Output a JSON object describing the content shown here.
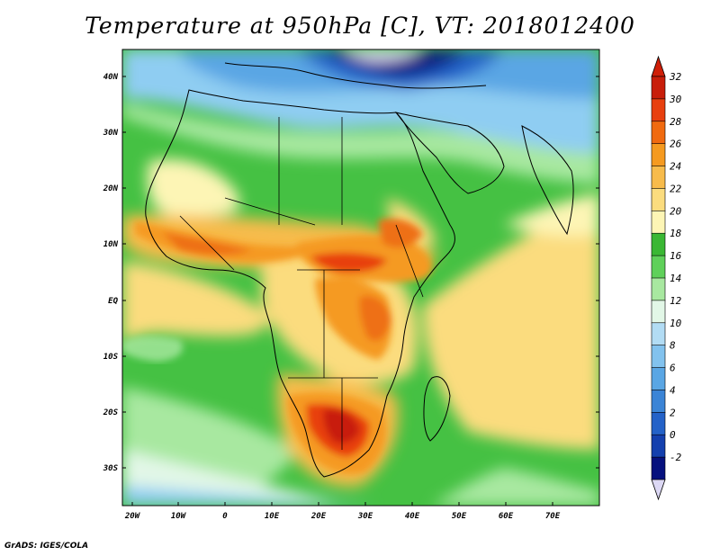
{
  "title": "Temperature at 950hPa [C], VT: 2018012400",
  "credit": "GrADS: IGES/COLA",
  "lat_labels": [
    "40N",
    "30N",
    "20N",
    "10N",
    "EQ",
    "10S",
    "20S",
    "30S"
  ],
  "lon_labels": [
    "20W",
    "10W",
    "0",
    "10E",
    "20E",
    "30E",
    "40E",
    "50E",
    "60E",
    "70E"
  ],
  "colorbar": {
    "labels": [
      "32",
      "30",
      "28",
      "26",
      "24",
      "22",
      "20",
      "18",
      "16",
      "14",
      "12",
      "10",
      "8",
      "6",
      "4",
      "2",
      "0",
      "-2"
    ],
    "colors": [
      "#c81e0a",
      "#e8400f",
      "#f06a10",
      "#f59a20",
      "#f7bb4b",
      "#fbdc7e",
      "#fdf5b5",
      "#3ab734",
      "#5fd05a",
      "#a8e8a0",
      "#e2f7e7",
      "#b2dcf4",
      "#82c2ee",
      "#5aa6e4",
      "#3b84d6",
      "#2462c8",
      "#1440ae",
      "#06117e"
    ],
    "top_arrow_color": "#cf1f08",
    "bottom_arrow_color": "#dcd8f4"
  },
  "field_colors": {
    "ocean_green": "#45c143",
    "ocean_light": "#a8e8a0",
    "ocean_pale": "#e2f7e7",
    "ocean_blue": "#8fcdf2",
    "cold_blue": "#3b84d6",
    "very_cold": "#101a80",
    "tropical_yellow": "#fbdc7e",
    "warm_orange": "#f59a20",
    "hot_orange": "#ee6f16",
    "hot_red": "#d8340c",
    "sahara_pale": "#fdf5b5"
  }
}
